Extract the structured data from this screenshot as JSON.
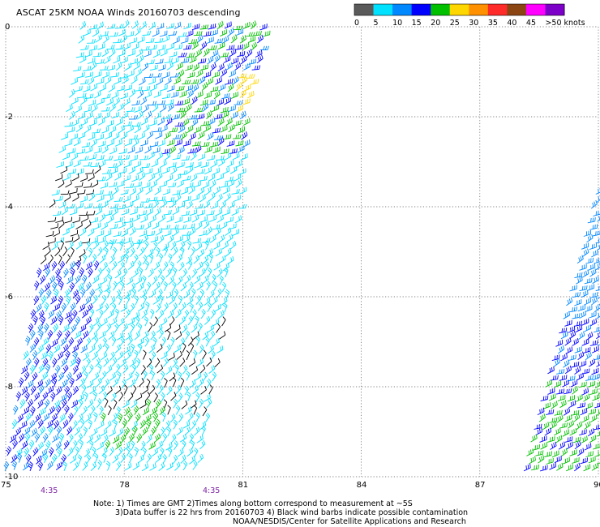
{
  "title": "ASCAT 25KM NOAA Winds 20160703 descending",
  "legend": {
    "ticks": [
      "0",
      "5",
      "10",
      "15",
      "20",
      "25",
      "30",
      "35",
      "40",
      "45",
      ">50 knots"
    ],
    "colors": [
      "#5a5a5a",
      "#00e0ff",
      "#0088ff",
      "#0000ff",
      "#00c000",
      "#ffd700",
      "#ff9000",
      "#ff2a2a",
      "#8b4513",
      "#ff00ff",
      "#7d00c8"
    ]
  },
  "map": {
    "lon_ticks": [
      "75",
      "78",
      "81",
      "84",
      "87",
      "90"
    ],
    "lat_ticks": [
      "0",
      "-2",
      "-4",
      "-6",
      "-8",
      "-10"
    ],
    "lon_range": [
      75,
      90
    ],
    "lat_range": [
      0,
      -10
    ],
    "grid": "dotted"
  },
  "swaths": [
    {
      "name": "left-swath",
      "colors": [
        "#00e0ff",
        "#0088ff",
        "#0000ff",
        "#00c000",
        "#ffd700",
        "#000000"
      ]
    },
    {
      "name": "right-swath",
      "colors": [
        "#0000ff",
        "#00c000",
        "#0088ff"
      ]
    }
  ],
  "time_labels": [
    {
      "text": "4:35",
      "lon": 76
    },
    {
      "text": "4:35",
      "lon": 80.2
    }
  ],
  "notes": {
    "line1": "Note: 1) Times are GMT 2)Times along bottom correspond to measurement at ~5S",
    "line2": "3)Data buffer is 22 hrs from 20160703 4) Black wind barbs indicate possible contamination",
    "line3": "NOAA/NESDIS/Center for Satellite Applications and Research"
  }
}
